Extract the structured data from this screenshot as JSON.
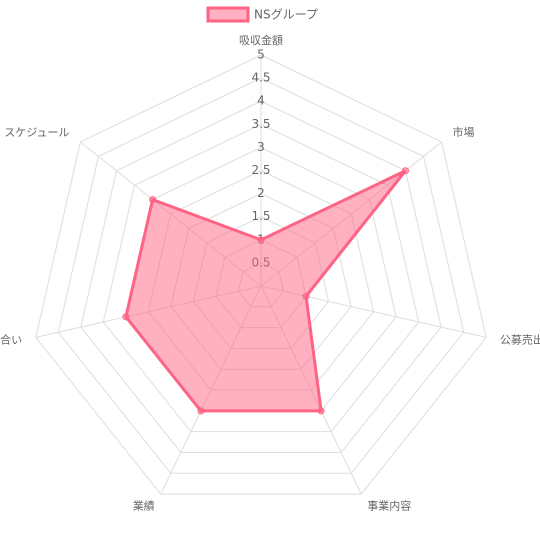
{
  "chart_data": {
    "type": "radar",
    "categories": [
      "吸収金額",
      "市場",
      "公募売出比",
      "事業内容",
      "業績",
      "地合い",
      "スケジュール"
    ],
    "series": [
      {
        "name": "NSグループ",
        "color": "#ff6384",
        "values": [
          1,
          4,
          1,
          3,
          3,
          3,
          3
        ]
      }
    ],
    "ylim": [
      0,
      5
    ],
    "yticks": [
      0.5,
      1,
      1.5,
      2,
      2.5,
      3,
      3.5,
      4,
      4.5,
      5
    ],
    "grid": true,
    "legend": "top"
  }
}
